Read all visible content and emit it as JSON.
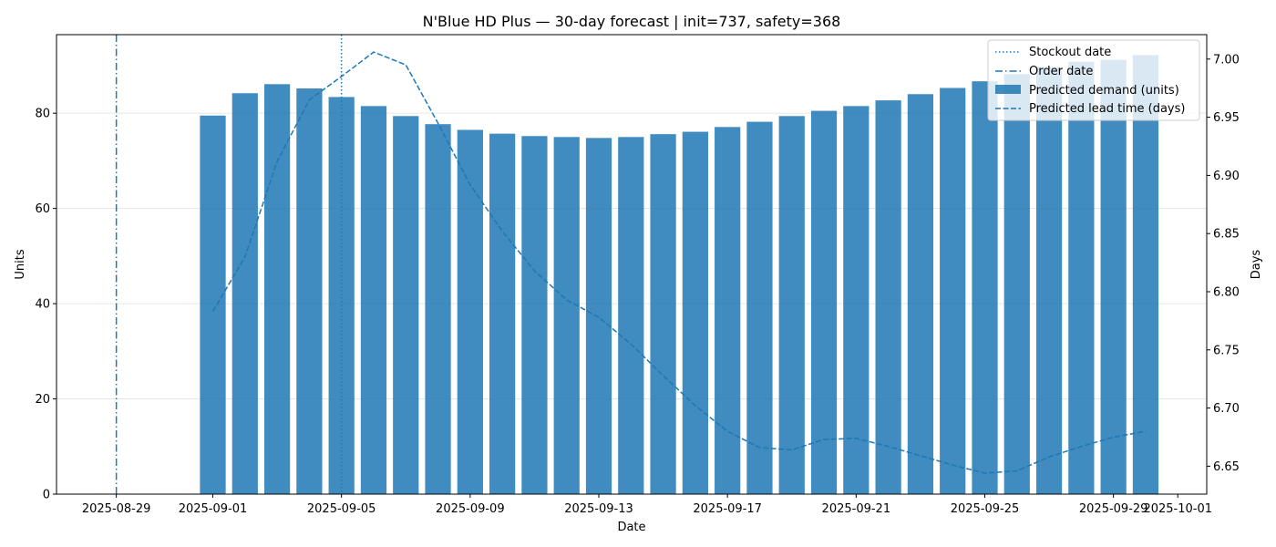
{
  "chart_data": {
    "type": "bar",
    "title": "N'Blue HD Plus — 30-day forecast | init=737, safety=368",
    "xlabel": "Date",
    "ylabel": "Units",
    "y2label": "Days",
    "x_range": [
      "2025-08-27",
      "2025-10-02"
    ],
    "ylim": [
      0,
      96.5
    ],
    "y2lim": [
      6.626,
      7.021
    ],
    "x_ticks": [
      "2025-08-29",
      "2025-09-01",
      "2025-09-05",
      "2025-09-09",
      "2025-09-13",
      "2025-09-17",
      "2025-09-21",
      "2025-09-25",
      "2025-09-29",
      "2025-10-01"
    ],
    "y_ticks": [
      "0",
      "20",
      "40",
      "60",
      "80"
    ],
    "y_tick_values": [
      0,
      20,
      40,
      60,
      80
    ],
    "y2_ticks": [
      "6.65",
      "6.70",
      "6.75",
      "6.80",
      "6.85",
      "6.90",
      "6.95",
      "7.00"
    ],
    "y2_tick_values": [
      6.65,
      6.7,
      6.75,
      6.8,
      6.85,
      6.9,
      6.95,
      7.0
    ],
    "grid": "horizontal",
    "legend_position": "top-right",
    "dates": [
      "2025-09-01",
      "2025-09-02",
      "2025-09-03",
      "2025-09-04",
      "2025-09-05",
      "2025-09-06",
      "2025-09-07",
      "2025-09-08",
      "2025-09-09",
      "2025-09-10",
      "2025-09-11",
      "2025-09-12",
      "2025-09-13",
      "2025-09-14",
      "2025-09-15",
      "2025-09-16",
      "2025-09-17",
      "2025-09-18",
      "2025-09-19",
      "2025-09-20",
      "2025-09-21",
      "2025-09-22",
      "2025-09-23",
      "2025-09-24",
      "2025-09-25",
      "2025-09-26",
      "2025-09-27",
      "2025-09-28",
      "2025-09-29",
      "2025-09-30"
    ],
    "series": [
      {
        "name": "Predicted demand (units)",
        "type": "bar",
        "axis": "left",
        "color": "#1f77b4",
        "values": [
          79.5,
          84.2,
          86.1,
          85.2,
          83.4,
          81.5,
          79.4,
          77.7,
          76.5,
          75.7,
          75.2,
          75.0,
          74.8,
          75.0,
          75.6,
          76.1,
          77.1,
          78.2,
          79.4,
          80.5,
          81.5,
          82.7,
          84.0,
          85.3,
          86.7,
          88.2,
          89.7,
          90.8,
          91.2,
          92.2
        ]
      },
      {
        "name": "Predicted lead time (days)",
        "type": "line",
        "style": "dashed",
        "axis": "right",
        "color": "#1f77b4",
        "values": [
          6.783,
          6.83,
          6.912,
          6.965,
          6.985,
          7.006,
          6.995,
          6.945,
          6.892,
          6.852,
          6.818,
          6.793,
          6.778,
          6.755,
          6.728,
          6.702,
          6.68,
          6.666,
          6.664,
          6.673,
          6.674,
          6.667,
          6.659,
          6.651,
          6.644,
          6.646,
          6.658,
          6.667,
          6.675,
          6.68
        ]
      }
    ],
    "events": [
      {
        "name": "Stockout date",
        "date": "2025-09-05",
        "style": "dotted",
        "color": "#1f77b4"
      },
      {
        "name": "Order date",
        "date": "2025-08-29",
        "style": "dashdot",
        "color": "#1f77b4"
      }
    ]
  }
}
